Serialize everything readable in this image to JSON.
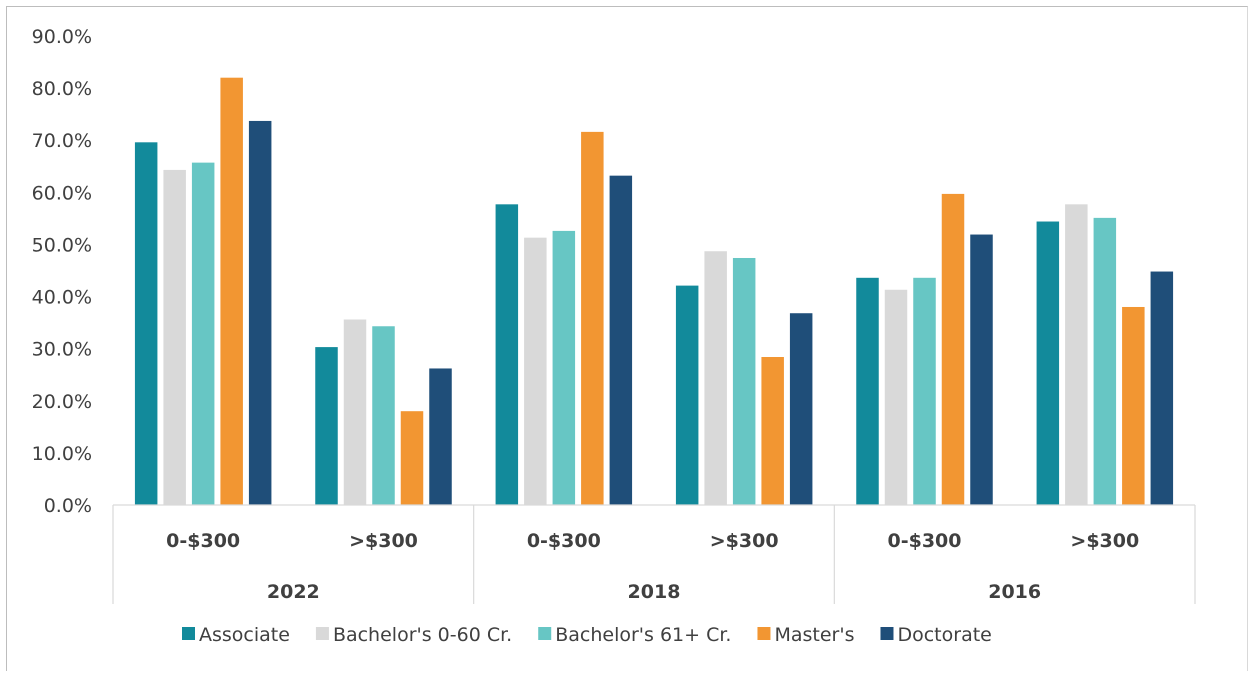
{
  "chart_data": {
    "type": "bar",
    "title": "",
    "xlabel": "",
    "ylabel": "",
    "ylim": [
      0,
      90
    ],
    "yticks": [
      "0.0%",
      "10.0%",
      "20.0%",
      "30.0%",
      "40.0%",
      "50.0%",
      "60.0%",
      "70.0%",
      "80.0%",
      "90.0%"
    ],
    "grid": false,
    "legend_position": "bottom",
    "groups": [
      {
        "label": "2022",
        "categories": [
          "0-$300",
          ">$300"
        ]
      },
      {
        "label": "2018",
        "categories": [
          "0-$300",
          ">$300"
        ]
      },
      {
        "label": "2016",
        "categories": [
          "0-$300",
          ">$300"
        ]
      }
    ],
    "categories": [
      "0-$300",
      ">$300",
      "0-$300",
      ">$300",
      "0-$300",
      ">$300"
    ],
    "series": [
      {
        "name": "Associate",
        "color": "#128a9b",
        "values": [
          69.6,
          30.3,
          57.7,
          42.1,
          43.6,
          54.4
        ]
      },
      {
        "name": "Bachelor's 0-60 Cr.",
        "color": "#d9d9d9",
        "values": [
          64.3,
          35.6,
          51.3,
          48.7,
          41.3,
          57.7
        ]
      },
      {
        "name": "Bachelor's 61+ Cr.",
        "color": "#67c6c4",
        "values": [
          65.7,
          34.3,
          52.6,
          47.4,
          43.6,
          55.1
        ]
      },
      {
        "name": "Master's",
        "color": "#f29632",
        "values": [
          82.0,
          18.0,
          71.6,
          28.4,
          59.7,
          38.0
        ]
      },
      {
        "name": "Doctorate",
        "color": "#1f4e79",
        "values": [
          73.7,
          26.2,
          63.2,
          36.8,
          51.9,
          44.8
        ]
      }
    ]
  }
}
